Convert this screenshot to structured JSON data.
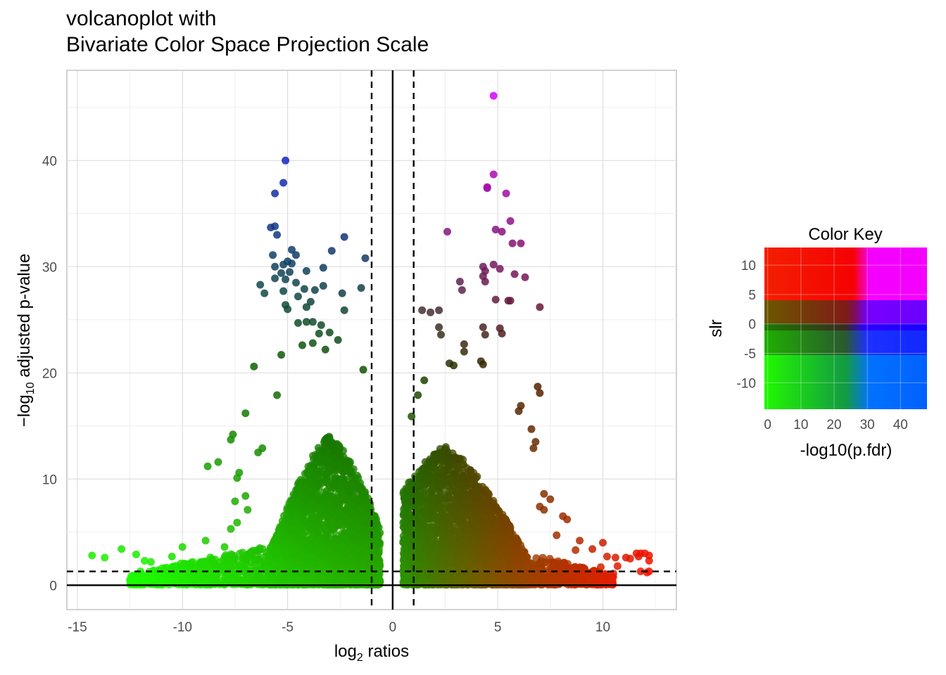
{
  "title": {
    "line1": "volcanoplot with",
    "line2": "Bivariate Color Space Projection Scale"
  },
  "axes": {
    "xlabel_main": "log",
    "xlabel_sub": "2",
    "xlabel_rest": " ratios",
    "ylabel_pre": "−log",
    "ylabel_sub": "10",
    "ylabel_rest": " adjusted p-value",
    "xticks": [
      "-15",
      "-10",
      "-5",
      "0",
      "5",
      "10"
    ],
    "yticks": [
      "0",
      "10",
      "20",
      "30",
      "40"
    ]
  },
  "legend": {
    "title": "Color Key",
    "xlabel": "-log10(p.fdr)",
    "ylabel": "slr",
    "xticks": [
      "0",
      "10",
      "20",
      "30",
      "40"
    ],
    "yticks": [
      "10",
      "5",
      "0",
      "-5",
      "-10"
    ]
  },
  "colors": {
    "high_slr_low_p": "#ff0000",
    "high_slr_high_p": "#ff00ff",
    "low_slr_low_p": "#22ff00",
    "low_slr_high_p": "#0066ff",
    "mid": "#1a6a00"
  },
  "chart_data": {
    "type": "scatter",
    "xlim": [
      -15.5,
      13.5
    ],
    "ylim": [
      -2.3,
      48.5
    ],
    "x_reference_lines": {
      "solid": 0,
      "dashed": [
        -1,
        1
      ]
    },
    "y_reference_lines": {
      "solid": 0,
      "dashed": 1.3
    },
    "grid": true,
    "legend_position": "right",
    "points": [
      [
        -5.1,
        40.0
      ],
      [
        -5.2,
        37.9
      ],
      [
        -5.6,
        36.9
      ],
      [
        -5.8,
        33.7
      ],
      [
        -5.6,
        33.8
      ],
      [
        -5.5,
        33.0
      ],
      [
        -4.8,
        31.6
      ],
      [
        -5.7,
        31.1
      ],
      [
        -4.6,
        31.1
      ],
      [
        -4.8,
        30.3
      ],
      [
        -5.0,
        30.5
      ],
      [
        -5.2,
        30.2
      ],
      [
        -5.6,
        30.0
      ],
      [
        -4.9,
        29.5
      ],
      [
        -5.3,
        29.4
      ],
      [
        -4.1,
        29.6
      ],
      [
        -5.6,
        28.9
      ],
      [
        -5.1,
        28.8
      ],
      [
        -4.6,
        28.5
      ],
      [
        -6.3,
        28.3
      ],
      [
        -3.3,
        29.9
      ],
      [
        -2.9,
        31.5
      ],
      [
        -1.3,
        30.8
      ],
      [
        -2.3,
        32.8
      ],
      [
        -3.3,
        28.2
      ],
      [
        -3.7,
        27.8
      ],
      [
        -4.2,
        27.9
      ],
      [
        -4.5,
        27.2
      ],
      [
        -5.2,
        27.7
      ],
      [
        -6.1,
        27.5
      ],
      [
        -2.4,
        27.5
      ],
      [
        -1.5,
        28.0
      ],
      [
        -5.1,
        26.4
      ],
      [
        -5.0,
        26.0
      ],
      [
        -4.1,
        26.2
      ],
      [
        -3.9,
        26.7
      ],
      [
        -2.3,
        25.9
      ],
      [
        -4.5,
        24.7
      ],
      [
        -4.1,
        24.8
      ],
      [
        -3.8,
        24.8
      ],
      [
        -3.4,
        24.5
      ],
      [
        -3.5,
        23.7
      ],
      [
        -3.0,
        23.8
      ],
      [
        -2.6,
        23.1
      ],
      [
        -3.8,
        22.8
      ],
      [
        -4.3,
        22.6
      ],
      [
        -5.3,
        21.7
      ],
      [
        -6.6,
        20.6
      ],
      [
        -3.2,
        22.2
      ],
      [
        -1.4,
        20.3
      ],
      [
        -7.0,
        16.2
      ],
      [
        -7.6,
        14.2
      ],
      [
        -7.7,
        13.7
      ],
      [
        -8.3,
        11.6
      ],
      [
        -8.8,
        11.2
      ],
      [
        -7.3,
        10.6
      ],
      [
        -7.4,
        10.1
      ],
      [
        -7.0,
        8.4
      ],
      [
        -7.5,
        7.9
      ],
      [
        -6.9,
        7.1
      ],
      [
        -7.4,
        5.9
      ],
      [
        -7.7,
        5.3
      ],
      [
        -8.0,
        3.6
      ],
      [
        -8.9,
        4.2
      ],
      [
        -9.1,
        2.2
      ],
      [
        -10.0,
        3.6
      ],
      [
        -10.5,
        2.7
      ],
      [
        -11.5,
        2.2
      ],
      [
        -12.2,
        2.9
      ],
      [
        -12.9,
        3.4
      ],
      [
        -13.7,
        2.6
      ],
      [
        -14.3,
        2.8
      ],
      [
        -12.0,
        1.3
      ],
      [
        -11.8,
        2.3
      ],
      [
        -9.3,
        0.2
      ],
      [
        -6.4,
        12.5
      ],
      [
        -6.2,
        12.9
      ],
      [
        -5.5,
        17.9
      ],
      [
        4.8,
        46.1
      ],
      [
        4.8,
        38.7
      ],
      [
        4.5,
        37.5
      ],
      [
        4.5,
        37.4
      ],
      [
        5.4,
        36.9
      ],
      [
        5.6,
        34.3
      ],
      [
        4.9,
        33.5
      ],
      [
        5.2,
        33.3
      ],
      [
        5.7,
        32.2
      ],
      [
        6.1,
        32.2
      ],
      [
        2.6,
        33.3
      ],
      [
        4.8,
        30.2
      ],
      [
        4.3,
        30.0
      ],
      [
        4.4,
        29.6
      ],
      [
        5.1,
        29.8
      ],
      [
        4.3,
        29.1
      ],
      [
        4.4,
        28.6
      ],
      [
        5.8,
        29.3
      ],
      [
        6.3,
        29.0
      ],
      [
        3.2,
        28.6
      ],
      [
        3.3,
        27.8
      ],
      [
        4.9,
        26.9
      ],
      [
        5.5,
        26.8
      ],
      [
        5.6,
        26.8
      ],
      [
        7.0,
        26.2
      ],
      [
        1.4,
        25.9
      ],
      [
        1.8,
        25.7
      ],
      [
        2.2,
        25.9
      ],
      [
        2.2,
        24.3
      ],
      [
        2.3,
        23.6
      ],
      [
        4.3,
        24.3
      ],
      [
        4.4,
        23.6
      ],
      [
        5.1,
        24.2
      ],
      [
        5.2,
        23.7
      ],
      [
        3.4,
        22.7
      ],
      [
        3.4,
        22.0
      ],
      [
        4.2,
        21.1
      ],
      [
        2.9,
        20.7
      ],
      [
        2.7,
        20.9
      ],
      [
        4.3,
        20.8
      ],
      [
        6.9,
        18.7
      ],
      [
        7.0,
        18.1
      ],
      [
        1.5,
        19.3
      ],
      [
        1.2,
        17.9
      ],
      [
        0.9,
        15.9
      ],
      [
        6.1,
        16.9
      ],
      [
        6.0,
        16.4
      ],
      [
        6.6,
        14.7
      ],
      [
        6.8,
        13.5
      ],
      [
        6.7,
        12.9
      ],
      [
        7.2,
        8.6
      ],
      [
        7.5,
        8.1
      ],
      [
        7.0,
        7.4
      ],
      [
        7.2,
        7.1
      ],
      [
        8.1,
        6.5
      ],
      [
        8.3,
        6.2
      ],
      [
        7.8,
        4.7
      ],
      [
        8.9,
        4.2
      ],
      [
        8.7,
        3.3
      ],
      [
        9.5,
        3.4
      ],
      [
        10.0,
        4.0
      ],
      [
        10.2,
        2.7
      ],
      [
        10.6,
        2.6
      ],
      [
        11.1,
        2.6
      ],
      [
        11.3,
        2.5
      ],
      [
        11.6,
        3.0
      ],
      [
        11.7,
        2.7
      ],
      [
        11.8,
        3.0
      ],
      [
        12.0,
        3.0
      ],
      [
        12.2,
        2.3
      ],
      [
        12.2,
        2.8
      ],
      [
        11.8,
        1.3
      ],
      [
        12.1,
        1.2
      ],
      [
        12.2,
        1.3
      ],
      [
        10.5,
        1.1
      ],
      [
        10.7,
        1.8
      ],
      [
        9.9,
        1.7
      ],
      [
        9.1,
        1.6
      ]
    ],
    "dense_clouds": [
      {
        "x_range": [
          -5.9,
          -0.6
        ],
        "y_range": [
          0,
          14
        ],
        "center_x": -3.0,
        "count": 2600
      },
      {
        "x_range": [
          0.5,
          6.4
        ],
        "y_range": [
          0,
          13
        ],
        "center_x": 2.5,
        "count": 2600
      },
      {
        "x_range": [
          -12.5,
          -1.0
        ],
        "y_range": [
          0,
          4
        ],
        "center_x": -4.0,
        "count": 900
      },
      {
        "x_range": [
          1.0,
          10.5
        ],
        "y_range": [
          0,
          4
        ],
        "center_x": 3.0,
        "count": 900
      }
    ]
  }
}
